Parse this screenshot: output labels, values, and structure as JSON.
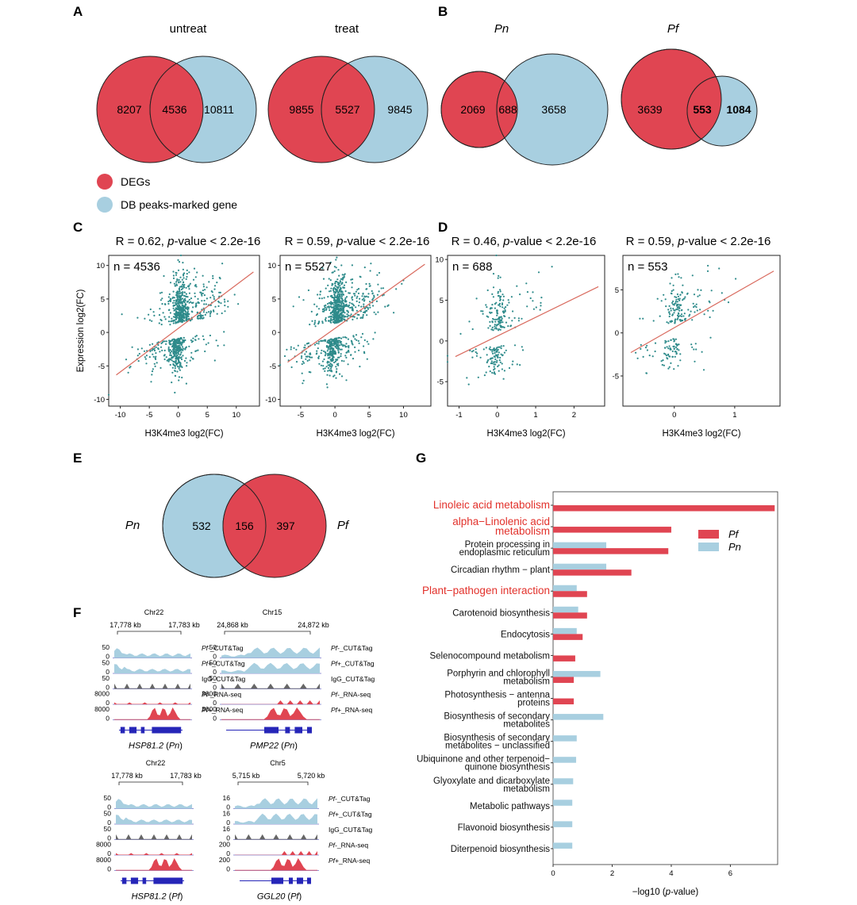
{
  "colors": {
    "red": "#E04552",
    "blue": "#A8CFE0",
    "teal": "#2E8B8B",
    "fitline": "#D96A5E",
    "gene": "#2626B8",
    "grey": "#666666",
    "highlight": "#E2312B"
  },
  "panel_labels": {
    "A": "A",
    "B": "B",
    "C": "C",
    "D": "D",
    "E": "E",
    "F": "F",
    "G": "G"
  },
  "venn": {
    "A": [
      {
        "title": "untreat",
        "left": "8207",
        "overlap": "4536",
        "right": "10811"
      },
      {
        "title": "treat",
        "left": "9855",
        "overlap": "5527",
        "right": "9845"
      }
    ],
    "B": [
      {
        "title": "Pn",
        "left": "2069",
        "overlap": "688",
        "right": "3658"
      },
      {
        "title": "Pf",
        "left": "3639",
        "overlap": "553",
        "right": "1084"
      }
    ],
    "legend": {
      "degs": "DEGs",
      "db": "DB peaks-marked gene"
    },
    "E": {
      "left_label": "Pn",
      "right_label": "Pf",
      "left": "532",
      "overlap": "156",
      "right": "397"
    }
  },
  "scatter": {
    "r_prefix": ", ",
    "pval_italic": "p",
    "pval_suffix": "-value < 2.2e-16",
    "ylabel": "Expression log2(FC)",
    "xlabel": "H3K4me3 log2(FC)",
    "plots": [
      {
        "r": "R = 0.62",
        "n": "n = 4536",
        "xlim": [
          -12,
          14
        ],
        "ylim": [
          -11,
          11.5
        ],
        "xticks": [
          -10,
          -5,
          0,
          5,
          10
        ],
        "yticks": [
          -10,
          -5,
          0,
          5,
          10
        ],
        "slope": 0.65
      },
      {
        "r": "R = 0.59",
        "n": "n = 5527",
        "xlim": [
          -8,
          14
        ],
        "ylim": [
          -11,
          11.5
        ],
        "xticks": [
          -5,
          0,
          5,
          10
        ],
        "yticks": [
          -10,
          -5,
          0,
          5,
          10
        ],
        "slope": 0.73
      },
      {
        "r": "R = 0.46",
        "n": "n = 688",
        "xlim": [
          -1.3,
          2.8
        ],
        "ylim": [
          -8,
          10.5
        ],
        "xticks": [
          -1,
          0,
          1,
          2
        ],
        "yticks": [
          -5,
          0,
          5,
          10
        ],
        "slope": 2.3
      },
      {
        "r": "R = 0.59",
        "n": "n = 553",
        "xlim": [
          -0.85,
          1.75
        ],
        "ylim": [
          -8.5,
          9
        ],
        "xticks": [
          0,
          1
        ],
        "yticks": [
          -5,
          0,
          5
        ],
        "slope": 4.0
      }
    ]
  },
  "tracks": {
    "track_names": [
      "Pf-_CUT&Tag",
      "Pf+_CUT&Tag",
      "IgG_CUT&Tag",
      "Pf-_RNA-seq",
      "Pf+_RNA-seq"
    ],
    "panels": [
      {
        "chr": "Chr22",
        "coord_left": "17,778 kb",
        "coord_right": "17,783 kb",
        "gene": "HSP81.2",
        "sp": "Pn",
        "scales": [
          [
            "50",
            "0"
          ],
          [
            "50",
            "0"
          ],
          [
            "50",
            "0"
          ],
          [
            "8000",
            "0"
          ],
          [
            "8000",
            "0"
          ]
        ]
      },
      {
        "chr": "Chr15",
        "coord_left": "24,868 kb",
        "coord_right": "24,872 kb",
        "gene": "PMP22",
        "sp": "Pn",
        "scales": [
          [
            "50",
            "0"
          ],
          [
            "50",
            "0"
          ],
          [
            "50",
            "0"
          ],
          [
            "3000",
            "0"
          ],
          [
            "3000",
            "0"
          ]
        ]
      },
      {
        "chr": "Chr22",
        "coord_left": "17,778 kb",
        "coord_right": "17,783 kb",
        "gene": "HSP81.2",
        "sp": "Pf",
        "scales": [
          [
            "50",
            "0"
          ],
          [
            "50",
            "0"
          ],
          [
            "50",
            "0"
          ],
          [
            "8000",
            "0"
          ],
          [
            "8000",
            "0"
          ]
        ]
      },
      {
        "chr": "Chr5",
        "coord_left": "5,715 kb",
        "coord_right": "5,720 kb",
        "gene": "GGL20",
        "sp": "Pf",
        "scales": [
          [
            "16",
            "0"
          ],
          [
            "16",
            "0"
          ],
          [
            "16",
            "0"
          ],
          [
            "200",
            "0"
          ],
          [
            "200",
            "0"
          ]
        ]
      }
    ]
  },
  "chart_data": {
    "type": "bar",
    "orientation": "horizontal",
    "xlabel_prefix": "−log10 (",
    "xlabel_italic": "p",
    "xlabel_suffix": "-value)",
    "xlim": [
      0,
      7.6
    ],
    "xticks": [
      0,
      2,
      4,
      6
    ],
    "legend": [
      "Pf",
      "Pn"
    ],
    "legend_position": "top-right",
    "categories": [
      {
        "label": [
          "Linoleic acid metabolism"
        ],
        "highlight": true,
        "pf": 7.5,
        "pn": null
      },
      {
        "label": [
          "alpha−Linolenic acid",
          "metabolism"
        ],
        "highlight": true,
        "pf": 4.0,
        "pn": null
      },
      {
        "label": [
          "Protein processing in",
          "endoplasmic reticulum"
        ],
        "highlight": false,
        "pf": 3.9,
        "pn": 1.8
      },
      {
        "label": [
          "Circadian rhythm − plant"
        ],
        "highlight": false,
        "pf": 2.65,
        "pn": 1.8
      },
      {
        "label": [
          "Plant−pathogen interaction"
        ],
        "highlight": true,
        "pf": 1.15,
        "pn": 0.8
      },
      {
        "label": [
          "Carotenoid biosynthesis"
        ],
        "highlight": false,
        "pf": 1.15,
        "pn": 0.85
      },
      {
        "label": [
          "Endocytosis"
        ],
        "highlight": false,
        "pf": 1.0,
        "pn": 0.8
      },
      {
        "label": [
          "Selenocompound metabolism"
        ],
        "highlight": false,
        "pf": 0.75,
        "pn": null
      },
      {
        "label": [
          "Porphyrin and chlorophyll",
          "metabolism"
        ],
        "highlight": false,
        "pf": 0.7,
        "pn": 1.6
      },
      {
        "label": [
          "Photosynthesis − antenna",
          "proteins"
        ],
        "highlight": false,
        "pf": 0.7,
        "pn": null
      },
      {
        "label": [
          "Biosynthesis of secondary",
          "metabolites"
        ],
        "highlight": false,
        "pf": null,
        "pn": 1.7
      },
      {
        "label": [
          "Biosynthesis of secondary",
          "metabolites − unclassified"
        ],
        "highlight": false,
        "pf": null,
        "pn": 0.8
      },
      {
        "label": [
          "Ubiquinone and other terpenoid−",
          "quinone biosynthesis"
        ],
        "highlight": false,
        "pf": null,
        "pn": 0.78
      },
      {
        "label": [
          "Glyoxylate and dicarboxylate",
          "metabolism"
        ],
        "highlight": false,
        "pf": null,
        "pn": 0.68
      },
      {
        "label": [
          "Metabolic pathways"
        ],
        "highlight": false,
        "pf": null,
        "pn": 0.65
      },
      {
        "label": [
          "Flavonoid biosynthesis"
        ],
        "highlight": false,
        "pf": null,
        "pn": 0.65
      },
      {
        "label": [
          "Diterpenoid biosynthesis"
        ],
        "highlight": false,
        "pf": null,
        "pn": 0.65
      }
    ]
  }
}
